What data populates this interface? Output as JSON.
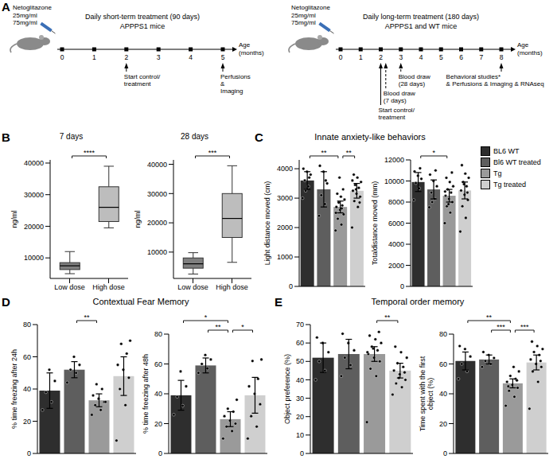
{
  "panels": [
    {
      "letter": "A"
    },
    {
      "letter": "B"
    },
    {
      "letter": "C",
      "title": "Innate anxiety-like behaviors"
    },
    {
      "letter": "D",
      "title": "Contextual Fear Memory"
    },
    {
      "letter": "E",
      "title": "Temporal order memory"
    }
  ],
  "diagram": {
    "timelines": [
      {
        "drug": "Netoglitazone",
        "doses": [
          "25mg/ml",
          "75mg/ml"
        ],
        "title": "Daily short-term treatment (90 days)",
        "subtitle": "APPPS1 mice",
        "ticks": [
          0,
          1,
          2,
          3,
          4,
          5
        ],
        "axis_label": [
          "Age",
          "(months)"
        ],
        "events": [
          {
            "at": 2,
            "label": [
              "Start control/",
              "treatment"
            ],
            "line_style": "solid"
          },
          {
            "at": 5,
            "label": [
              "Perfusions",
              "&",
              "Imaging"
            ],
            "line_style": "solid"
          }
        ]
      },
      {
        "drug": "Netoglitazone",
        "doses": [
          "25mg/ml",
          "75mg/ml"
        ],
        "title": "Daily long-term treatment (180 days)",
        "subtitle": "APPPS1 and WT mice",
        "ticks": [
          0,
          1,
          2,
          3,
          4,
          5,
          6,
          7,
          8
        ],
        "axis_label": [
          "Age",
          "(months)"
        ],
        "events": [
          {
            "at": 2,
            "label": [
              "Start control/",
              "treatment"
            ],
            "line_style": "solid"
          },
          {
            "at": 2.25,
            "label": [
              "Blood draw",
              "(7 days)"
            ],
            "line_style": "dashed"
          },
          {
            "at": 3,
            "label": [
              "Blood draw",
              "(28 days)"
            ],
            "line_style": "dashed"
          },
          {
            "at": 8,
            "label": [
              "Behavioral studies*",
              "& Perfusions & Imaging & RNAseq"
            ],
            "line_style": "solid"
          }
        ]
      }
    ]
  },
  "groups": [
    {
      "name": "BL6 WT",
      "color": "#2e2e2e"
    },
    {
      "name": "Bl6 WT treated",
      "color": "#5e5e5e"
    },
    {
      "name": "Tg",
      "color": "#9a9a9a"
    },
    {
      "name": "Tg treated",
      "color": "#cfcfcf"
    }
  ],
  "chart_data": [
    {
      "panel": "B",
      "type": "box",
      "title": "7 days",
      "categories": [
        "Low dose",
        "High dose"
      ],
      "colors": [
        "#7f7f7f",
        "#bdbdbd"
      ],
      "boxes": [
        {
          "min": 5000,
          "q1": 6300,
          "median": 7500,
          "q3": 8500,
          "max": 12000
        },
        {
          "min": 19500,
          "q1": 21500,
          "median": 26000,
          "q3": 32500,
          "max": 39000
        }
      ],
      "ylabel": "ng/ml",
      "ylim": [
        3500,
        41000
      ],
      "yticks": [
        10000,
        20000,
        30000,
        40000
      ],
      "comparisons": [
        {
          "groups": [
            0,
            1
          ],
          "label": "****"
        }
      ]
    },
    {
      "panel": "B",
      "type": "box",
      "title": "28 days",
      "categories": [
        "Low dose",
        "High dose"
      ],
      "colors": [
        "#7f7f7f",
        "#bdbdbd"
      ],
      "boxes": [
        {
          "min": 2500,
          "q1": 4500,
          "median": 6000,
          "q3": 8000,
          "max": 9800
        },
        {
          "min": 6500,
          "q1": 15000,
          "median": 21500,
          "q3": 30000,
          "max": 39500
        }
      ],
      "ylabel": "ng/ml",
      "ylim": [
        1000,
        41500
      ],
      "yticks": [
        10000,
        20000,
        30000,
        40000
      ],
      "comparisons": [
        {
          "groups": [
            0,
            1
          ],
          "label": "***"
        }
      ]
    },
    {
      "panel": "C",
      "type": "bar",
      "ylabel": "Light distance moved (cm)",
      "values": [
        3600,
        3300,
        2700,
        3250
      ],
      "errors": [
        300,
        600,
        200,
        250
      ],
      "points": [
        [
          3000,
          3400,
          3600,
          3800,
          3900,
          4000,
          3700,
          3250
        ],
        [
          2400,
          2800,
          3100,
          3500,
          3900,
          4100,
          3600
        ],
        [
          1900,
          2100,
          2300,
          2450,
          2600,
          2700,
          2750,
          2850,
          2950,
          3050,
          3150,
          3300,
          3700,
          2500,
          2650
        ],
        [
          2000,
          2700,
          2900,
          3050,
          3150,
          3250,
          3350,
          3450,
          3550,
          3700,
          3800,
          2850,
          3300,
          3600
        ]
      ],
      "ylim": [
        0,
        4300
      ],
      "yticks": [
        0,
        1000,
        2000,
        3000,
        4000
      ],
      "tick_labels": "y",
      "comparisons": [
        {
          "groups": [
            0,
            2
          ],
          "label": "**"
        },
        {
          "groups": [
            2,
            3
          ],
          "label": "**"
        }
      ]
    },
    {
      "panel": "C",
      "type": "bar",
      "ylabel": "Totaldistance moved (mm)",
      "values": [
        9900,
        9200,
        8600,
        9100
      ],
      "errors": [
        900,
        900,
        600,
        800
      ],
      "points": [
        [
          8200,
          9300,
          9800,
          10200,
          10500,
          10900,
          11200
        ],
        [
          7500,
          8300,
          8900,
          9500,
          10000,
          10600,
          11000,
          8000
        ],
        [
          6000,
          7000,
          7600,
          8000,
          8300,
          8600,
          8900,
          9200,
          9500,
          9900,
          10300,
          10800,
          7800,
          9000
        ],
        [
          5200,
          6500,
          7600,
          8200,
          8700,
          9100,
          9500,
          9900,
          10300,
          10700,
          11500,
          8900,
          9700
        ]
      ],
      "ylim": [
        0,
        12000
      ],
      "yticks": [
        0,
        2000,
        4000,
        6000,
        8000,
        10000,
        12000
      ],
      "tick_labels": "y",
      "legend": "right",
      "comparisons": [
        {
          "groups": [
            0,
            2
          ],
          "label": "*"
        }
      ]
    },
    {
      "panel": "D",
      "type": "bar",
      "ylabel": "% time freezing after 24h",
      "values": [
        39,
        52,
        33,
        48
      ],
      "errors": [
        11,
        5,
        4,
        12
      ],
      "points": [
        [
          27,
          32,
          38,
          45,
          52
        ],
        [
          44,
          50,
          52,
          55,
          60
        ],
        [
          24,
          27,
          30,
          32,
          34,
          36,
          40,
          43,
          32
        ],
        [
          8,
          30,
          40,
          47,
          52,
          55,
          62,
          68,
          70
        ]
      ],
      "ylim": [
        0,
        80
      ],
      "yticks": [
        0,
        20,
        40,
        60,
        80
      ],
      "tick_labels": "y",
      "comparisons": [
        {
          "groups": [
            1,
            2
          ],
          "label": "**"
        }
      ]
    },
    {
      "panel": "D",
      "type": "bar",
      "ylabel": "% time freezing after 48h",
      "values": [
        39,
        59,
        23,
        39
      ],
      "errors": [
        10,
        5,
        5,
        12
      ],
      "points": [
        [
          26,
          32,
          38,
          45,
          55
        ],
        [
          54,
          57,
          60,
          63,
          66
        ],
        [
          10,
          15,
          18,
          20,
          22,
          25,
          28,
          30,
          36
        ],
        [
          10,
          18,
          25,
          33,
          40,
          45,
          50,
          62,
          63
        ]
      ],
      "ylim": [
        0,
        80
      ],
      "yticks": [
        0,
        20,
        40,
        60,
        80
      ],
      "tick_labels": "y",
      "comparisons": [
        {
          "groups": [
            0,
            2
          ],
          "label": "*"
        },
        {
          "groups": [
            1,
            2
          ],
          "label": "**"
        },
        {
          "groups": [
            2,
            3
          ],
          "label": "*"
        }
      ]
    },
    {
      "panel": "E",
      "type": "bar",
      "ylabel": "Object preference (%)",
      "values": [
        52,
        54,
        54,
        45
      ],
      "errors": [
        8,
        8,
        4,
        4
      ],
      "points": [
        [
          40,
          45,
          50,
          55,
          60,
          63
        ],
        [
          42,
          48,
          52,
          56,
          60,
          65
        ],
        [
          17,
          42,
          46,
          50,
          52,
          54,
          56,
          58,
          60,
          62,
          64,
          66,
          57,
          55
        ],
        [
          32,
          36,
          38,
          40,
          43,
          45,
          47,
          49,
          52,
          55,
          58,
          44,
          41
        ]
      ],
      "ylim": [
        0,
        70
      ],
      "yticks": [
        0,
        10,
        20,
        30,
        40,
        50,
        60,
        70
      ],
      "tick_labels": "y",
      "comparisons": [
        {
          "groups": [
            2,
            3
          ],
          "label": "**"
        }
      ]
    },
    {
      "panel": "E",
      "type": "bar",
      "ylabel": "Time spent with the first object (%)",
      "values": [
        62,
        63,
        47,
        61
      ],
      "errors": [
        6,
        3,
        3,
        5
      ],
      "points": [
        [
          50,
          55,
          60,
          65,
          70,
          72
        ],
        [
          58,
          60,
          62,
          64,
          66,
          68
        ],
        [
          32,
          38,
          42,
          44,
          46,
          48,
          50,
          52,
          55,
          58,
          45,
          49
        ],
        [
          30,
          48,
          55,
          58,
          60,
          63,
          66,
          68,
          70,
          72,
          75,
          62
        ]
      ],
      "ylim": [
        0,
        80
      ],
      "yticks": [
        0,
        20,
        40,
        60,
        80
      ],
      "tick_labels": "y",
      "comparisons": [
        {
          "groups": [
            0,
            2
          ],
          "label": "**"
        },
        {
          "groups": [
            1,
            2
          ],
          "label": "***"
        },
        {
          "groups": [
            2,
            3
          ],
          "label": "***"
        }
      ]
    }
  ]
}
